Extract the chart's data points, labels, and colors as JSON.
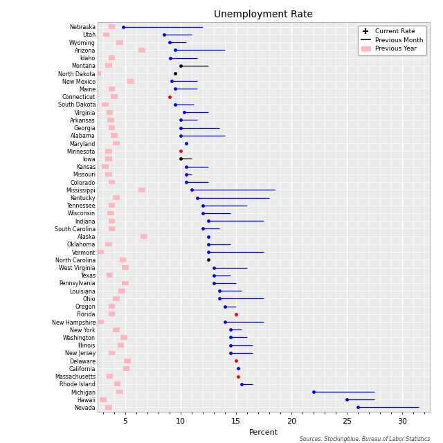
{
  "title": "Unemployment Rate",
  "xlabel": "Percent",
  "source": "Sources: Stockingblue, Bureau of Labor Statistics",
  "xlim": [
    2.5,
    32.5
  ],
  "xticks": [
    5,
    10,
    15,
    20,
    25,
    30
  ],
  "pink_color": "#FFB6C1",
  "states_data": [
    [
      "Nebraska",
      4.8,
      12.0,
      3.8,
      "blue"
    ],
    [
      "Utah",
      8.5,
      11.0,
      3.3,
      "blue"
    ],
    [
      "Wyoming",
      9.0,
      10.5,
      4.5,
      "blue"
    ],
    [
      "Arizona",
      9.5,
      14.0,
      6.5,
      "blue"
    ],
    [
      "Idaho",
      9.1,
      11.5,
      3.8,
      "blue"
    ],
    [
      "Montana",
      10.0,
      12.5,
      3.5,
      "black"
    ],
    [
      "North Dakota",
      9.5,
      null,
      2.5,
      "black"
    ],
    [
      "New Mexico",
      9.2,
      11.5,
      5.5,
      "blue"
    ],
    [
      "Maine",
      9.5,
      11.5,
      3.8,
      "blue"
    ],
    [
      "Connecticut",
      9.0,
      null,
      4.0,
      "red"
    ],
    [
      "South Dakota",
      9.5,
      11.2,
      3.2,
      "blue"
    ],
    [
      "Virginia",
      10.3,
      12.5,
      3.6,
      "blue"
    ],
    [
      "Arkansas",
      10.0,
      11.5,
      3.7,
      "blue"
    ],
    [
      "Georgia",
      10.0,
      13.5,
      3.8,
      "blue"
    ],
    [
      "Alabama",
      10.0,
      14.0,
      4.0,
      "blue"
    ],
    [
      "Maryland",
      10.5,
      null,
      4.2,
      "blue"
    ],
    [
      "Minnesota",
      10.0,
      null,
      3.5,
      "red"
    ],
    [
      "Iowa",
      10.0,
      11.0,
      3.5,
      "black"
    ],
    [
      "Kansas",
      10.5,
      12.5,
      3.2,
      "blue"
    ],
    [
      "Missouri",
      10.5,
      11.0,
      3.5,
      "blue"
    ],
    [
      "Colorado",
      10.5,
      12.5,
      3.8,
      "blue"
    ],
    [
      "Mississippi",
      11.0,
      18.5,
      6.5,
      "blue"
    ],
    [
      "Kentucky",
      11.5,
      18.0,
      4.2,
      "blue"
    ],
    [
      "Tennessee",
      12.0,
      16.0,
      3.8,
      "blue"
    ],
    [
      "Wisconsin",
      12.0,
      14.5,
      3.7,
      "blue"
    ],
    [
      "Indiana",
      12.5,
      17.5,
      3.8,
      "blue"
    ],
    [
      "South Carolina",
      12.0,
      13.5,
      3.8,
      "blue"
    ],
    [
      "Alaska",
      12.5,
      12.5,
      6.7,
      "blue"
    ],
    [
      "Oklahoma",
      12.5,
      14.5,
      3.5,
      "blue"
    ],
    [
      "Vermont",
      12.5,
      17.5,
      2.8,
      "blue"
    ],
    [
      "North Carolina",
      12.5,
      null,
      4.8,
      "black"
    ],
    [
      "West Virginia",
      13.0,
      16.0,
      5.0,
      "blue"
    ],
    [
      "Texas",
      13.0,
      14.5,
      3.6,
      "blue"
    ],
    [
      "Pennsylvania",
      13.0,
      15.0,
      5.0,
      "blue"
    ],
    [
      "Louisiana",
      13.5,
      15.5,
      4.7,
      "blue"
    ],
    [
      "Ohio",
      13.5,
      17.5,
      4.2,
      "blue"
    ],
    [
      "Oregon",
      14.0,
      15.0,
      3.8,
      "blue"
    ],
    [
      "Florida",
      15.0,
      null,
      3.8,
      "red"
    ],
    [
      "New Hampshire",
      14.0,
      17.5,
      2.8,
      "blue"
    ],
    [
      "New York",
      14.5,
      15.5,
      4.2,
      "blue"
    ],
    [
      "Washington",
      14.5,
      16.0,
      4.9,
      "blue"
    ],
    [
      "Illinois",
      14.5,
      16.5,
      4.6,
      "blue"
    ],
    [
      "New Jersey",
      14.5,
      16.5,
      3.8,
      "blue"
    ],
    [
      "Delaware",
      15.0,
      null,
      5.2,
      "red"
    ],
    [
      "California",
      15.2,
      null,
      5.1,
      "blue"
    ],
    [
      "Massachusetts",
      15.2,
      null,
      3.6,
      "red"
    ],
    [
      "Rhode Island",
      15.5,
      16.5,
      4.3,
      "blue"
    ],
    [
      "Michigan",
      22.0,
      27.5,
      4.5,
      "blue"
    ],
    [
      "Hawaii",
      25.0,
      27.5,
      3.0,
      "blue"
    ],
    [
      "Nevada",
      26.0,
      31.5,
      3.5,
      "blue"
    ]
  ]
}
